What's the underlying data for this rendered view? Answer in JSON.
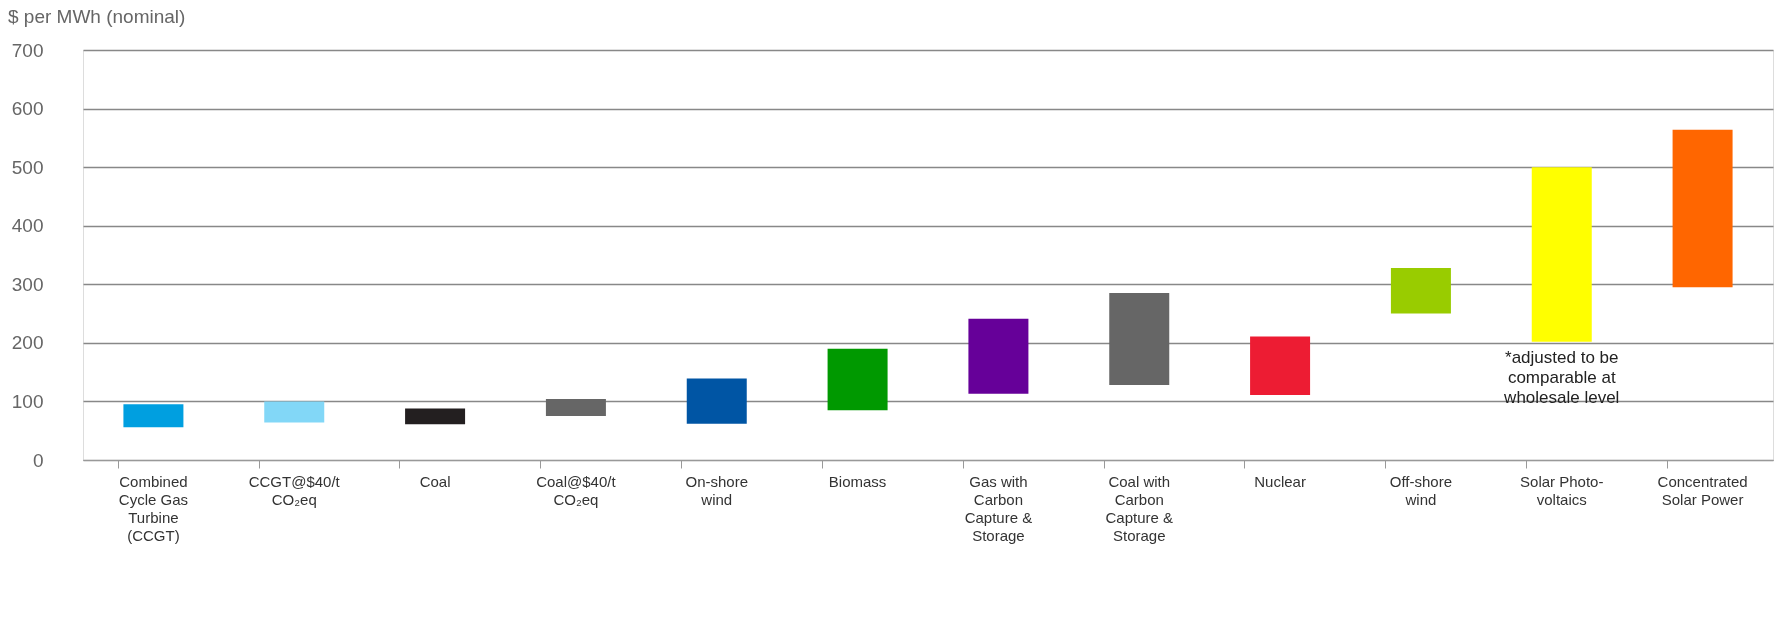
{
  "chart_data": {
    "type": "bar",
    "ylabel": "$ per MWh (nominal)",
    "categories": [
      "Combined Cycle Gas Turbine (CCGT)",
      "CCGT@$40/t CO₂eq",
      "Coal",
      "Coal@$40/t CO₂eq",
      "On-shore wind",
      "Biomass",
      "Gas with Carbon Capture & Storage",
      "Coal with Carbon Capture & Storage",
      "Nuclear",
      "Off-shore wind",
      "Solar Photo-voltaics",
      "Concentrated Solar Power"
    ],
    "base": [
      56,
      64,
      61,
      75,
      62,
      85,
      113,
      128,
      111,
      250,
      202,
      295
    ],
    "values": [
      39,
      36,
      27,
      29,
      77,
      105,
      128,
      157,
      100,
      78,
      298,
      269
    ],
    "colors": [
      "#009fe0",
      "#82d7f7",
      "#231f20",
      "#666666",
      "#0055a4",
      "#009900",
      "#660099",
      "#666666",
      "#ed1c33",
      "#99cc00",
      "#ffff00",
      "#ff6600"
    ],
    "ylim": [
      0,
      700
    ],
    "yticks": [
      0,
      100,
      200,
      300,
      400,
      500,
      600,
      700
    ],
    "grid": "y",
    "annotations": [
      "*adjusted to be comparable at wholesale level"
    ]
  }
}
